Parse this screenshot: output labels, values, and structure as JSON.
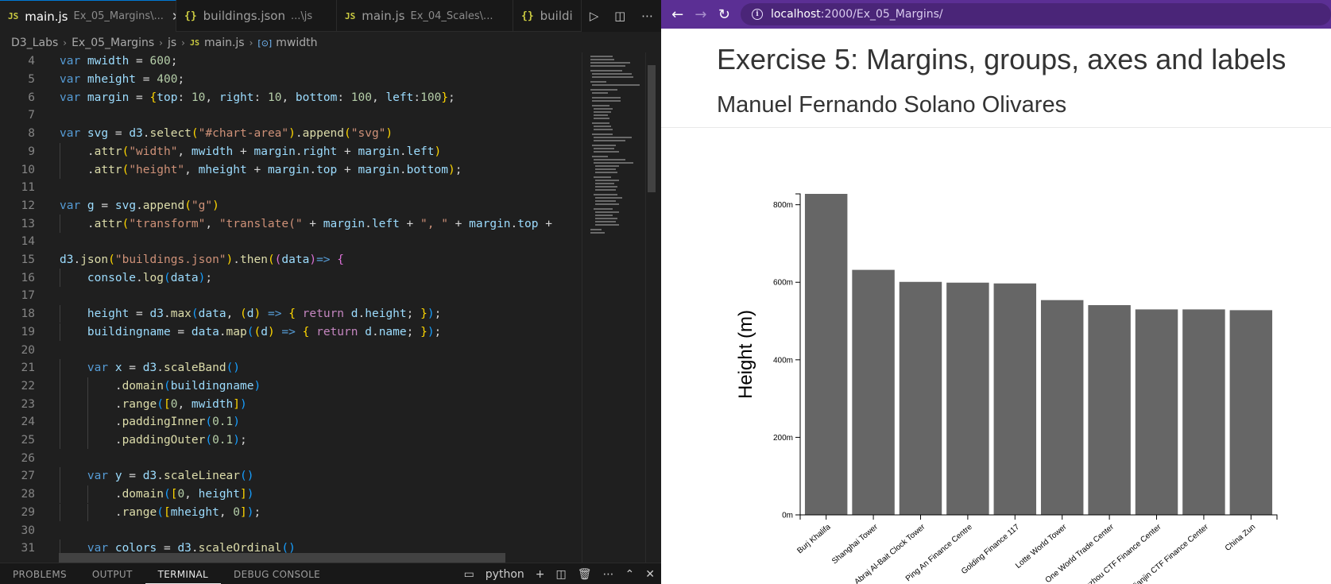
{
  "editor": {
    "tabs": [
      {
        "name": "main.js",
        "desc": "Ex_05_Margins\\...",
        "type": "js",
        "active": true
      },
      {
        "name": "buildings.json",
        "desc": "...\\js",
        "type": "json",
        "active": false
      },
      {
        "name": "main.js",
        "desc": "Ex_04_Scales\\...",
        "type": "js",
        "active": false
      },
      {
        "name": "buildi",
        "desc": "",
        "type": "json",
        "active": false
      }
    ],
    "breadcrumb": [
      "D3_Labs",
      "Ex_05_Margins",
      "js",
      "main.js",
      "mwidth"
    ],
    "code_lines": [
      {
        "n": "4",
        "indent": 0,
        "tokens": [
          [
            "kw",
            "var "
          ],
          [
            "vr hl",
            ""
          ],
          [
            "vr",
            "mwidth"
          ],
          [
            "",
            ""
          ],
          [
            "",
            " = "
          ],
          [
            "num",
            "600"
          ],
          [
            "",
            ";"
          ]
        ]
      },
      {
        "n": "5",
        "indent": 0,
        "tokens": [
          [
            "kw",
            "var "
          ],
          [
            "vr",
            "mheight"
          ],
          [
            "",
            " = "
          ],
          [
            "num",
            "400"
          ],
          [
            "",
            ";"
          ]
        ]
      },
      {
        "n": "6",
        "indent": 0,
        "tokens": [
          [
            "kw",
            "var "
          ],
          [
            "vr",
            "margin"
          ],
          [
            "",
            " = "
          ],
          [
            "br1",
            "{"
          ],
          [
            "vr",
            "top"
          ],
          [
            "",
            ": "
          ],
          [
            "num",
            "10"
          ],
          [
            "",
            ", "
          ],
          [
            "vr",
            "right"
          ],
          [
            "",
            ": "
          ],
          [
            "num",
            "10"
          ],
          [
            "",
            ", "
          ],
          [
            "vr",
            "bottom"
          ],
          [
            "",
            ": "
          ],
          [
            "num",
            "100"
          ],
          [
            "",
            ", "
          ],
          [
            "vr",
            "left"
          ],
          [
            "",
            ":"
          ],
          [
            "num",
            "100"
          ],
          [
            "br1",
            "}"
          ],
          [
            "",
            ";"
          ]
        ]
      },
      {
        "n": "7",
        "indent": 0,
        "tokens": []
      },
      {
        "n": "8",
        "indent": 0,
        "tokens": [
          [
            "kw",
            "var "
          ],
          [
            "vr",
            "svg"
          ],
          [
            "",
            " = "
          ],
          [
            "vr",
            "d3"
          ],
          [
            "",
            "."
          ],
          [
            "fn",
            "select"
          ],
          [
            "br1",
            "("
          ],
          [
            "str",
            "\"#chart-area\""
          ],
          [
            "br1",
            ")"
          ],
          [
            "",
            "."
          ],
          [
            "fn",
            "append"
          ],
          [
            "br1",
            "("
          ],
          [
            "str",
            "\"svg\""
          ],
          [
            "br1",
            ")"
          ]
        ]
      },
      {
        "n": "9",
        "indent": 1,
        "tokens": [
          [
            "",
            "."
          ],
          [
            "fn",
            "attr"
          ],
          [
            "br1",
            "("
          ],
          [
            "str",
            "\"width\""
          ],
          [
            "",
            ", "
          ],
          [
            "vr",
            "mwidth"
          ],
          [
            "",
            " + "
          ],
          [
            "vr",
            "margin"
          ],
          [
            "",
            "."
          ],
          [
            "vr",
            "right"
          ],
          [
            "",
            " + "
          ],
          [
            "vr",
            "margin"
          ],
          [
            "",
            "."
          ],
          [
            "vr",
            "left"
          ],
          [
            "br1",
            ")"
          ]
        ]
      },
      {
        "n": "10",
        "indent": 1,
        "tokens": [
          [
            "",
            "."
          ],
          [
            "fn",
            "attr"
          ],
          [
            "br1",
            "("
          ],
          [
            "str",
            "\"height\""
          ],
          [
            "",
            ", "
          ],
          [
            "vr",
            "mheight"
          ],
          [
            "",
            " + "
          ],
          [
            "vr",
            "margin"
          ],
          [
            "",
            "."
          ],
          [
            "vr",
            "top"
          ],
          [
            "",
            " + "
          ],
          [
            "vr",
            "margin"
          ],
          [
            "",
            "."
          ],
          [
            "vr",
            "bottom"
          ],
          [
            "br1",
            ")"
          ],
          [
            "",
            ";"
          ]
        ]
      },
      {
        "n": "11",
        "indent": 0,
        "tokens": []
      },
      {
        "n": "12",
        "indent": 0,
        "tokens": [
          [
            "kw",
            "var "
          ],
          [
            "vr",
            "g"
          ],
          [
            "",
            " = "
          ],
          [
            "vr",
            "svg"
          ],
          [
            "",
            "."
          ],
          [
            "fn",
            "append"
          ],
          [
            "br1",
            "("
          ],
          [
            "str",
            "\"g\""
          ],
          [
            "br1",
            ")"
          ]
        ]
      },
      {
        "n": "13",
        "indent": 1,
        "tokens": [
          [
            "",
            "."
          ],
          [
            "fn",
            "attr"
          ],
          [
            "br1",
            "("
          ],
          [
            "str",
            "\"transform\""
          ],
          [
            "",
            ", "
          ],
          [
            "str",
            "\"translate(\""
          ],
          [
            "",
            " + "
          ],
          [
            "vr",
            "margin"
          ],
          [
            "",
            "."
          ],
          [
            "vr",
            "left"
          ],
          [
            "",
            " + "
          ],
          [
            "str",
            "\", \""
          ],
          [
            "",
            " + "
          ],
          [
            "vr",
            "margin"
          ],
          [
            "",
            "."
          ],
          [
            "vr",
            "top"
          ],
          [
            "",
            " +"
          ]
        ]
      },
      {
        "n": "14",
        "indent": 0,
        "tokens": []
      },
      {
        "n": "15",
        "indent": 0,
        "tokens": [
          [
            "vr",
            "d3"
          ],
          [
            "",
            "."
          ],
          [
            "fn",
            "json"
          ],
          [
            "br1",
            "("
          ],
          [
            "str",
            "\"buildings.json\""
          ],
          [
            "br1",
            ")"
          ],
          [
            "",
            "."
          ],
          [
            "fn",
            "then"
          ],
          [
            "br1",
            "("
          ],
          [
            "br2",
            "("
          ],
          [
            "vr",
            "data"
          ],
          [
            "br2",
            ")"
          ],
          [
            "kw",
            "=>"
          ],
          [
            "",
            " "
          ],
          [
            "br2",
            "{"
          ]
        ]
      },
      {
        "n": "16",
        "indent": 1,
        "tokens": [
          [
            "vr",
            "console"
          ],
          [
            "",
            "."
          ],
          [
            "fn",
            "log"
          ],
          [
            "br3",
            "("
          ],
          [
            "vr",
            "data"
          ],
          [
            "br3",
            ")"
          ],
          [
            "",
            ";"
          ]
        ]
      },
      {
        "n": "17",
        "indent": 0,
        "tokens": []
      },
      {
        "n": "18",
        "indent": 1,
        "tokens": [
          [
            "vr",
            "height"
          ],
          [
            "",
            " = "
          ],
          [
            "vr",
            "d3"
          ],
          [
            "",
            "."
          ],
          [
            "fn",
            "max"
          ],
          [
            "br3",
            "("
          ],
          [
            "vr",
            "data"
          ],
          [
            "",
            ", "
          ],
          [
            "br1",
            "("
          ],
          [
            "vr",
            "d"
          ],
          [
            "br1",
            ")"
          ],
          [
            "",
            " "
          ],
          [
            "kw",
            "=>"
          ],
          [
            "",
            " "
          ],
          [
            "br1",
            "{"
          ],
          [
            "",
            " "
          ],
          [
            "kw2",
            "return"
          ],
          [
            "",
            " "
          ],
          [
            "vr",
            "d"
          ],
          [
            "",
            "."
          ],
          [
            "vr",
            "height"
          ],
          [
            "",
            "; "
          ],
          [
            "br1",
            "}"
          ],
          [
            "br3",
            ")"
          ],
          [
            "",
            ";"
          ]
        ]
      },
      {
        "n": "19",
        "indent": 1,
        "tokens": [
          [
            "vr",
            "buildingname"
          ],
          [
            "",
            " = "
          ],
          [
            "vr",
            "data"
          ],
          [
            "",
            "."
          ],
          [
            "fn",
            "map"
          ],
          [
            "br3",
            "("
          ],
          [
            "br1",
            "("
          ],
          [
            "vr",
            "d"
          ],
          [
            "br1",
            ")"
          ],
          [
            "",
            " "
          ],
          [
            "kw",
            "=>"
          ],
          [
            "",
            " "
          ],
          [
            "br1",
            "{"
          ],
          [
            "",
            " "
          ],
          [
            "kw2",
            "return"
          ],
          [
            "",
            " "
          ],
          [
            "vr",
            "d"
          ],
          [
            "",
            "."
          ],
          [
            "vr",
            "name"
          ],
          [
            "",
            "; "
          ],
          [
            "br1",
            "}"
          ],
          [
            "br3",
            ")"
          ],
          [
            "",
            ";"
          ]
        ]
      },
      {
        "n": "20",
        "indent": 0,
        "tokens": []
      },
      {
        "n": "21",
        "indent": 1,
        "tokens": [
          [
            "kw",
            "var "
          ],
          [
            "vr",
            "x"
          ],
          [
            "",
            " = "
          ],
          [
            "vr",
            "d3"
          ],
          [
            "",
            "."
          ],
          [
            "fn",
            "scaleBand"
          ],
          [
            "br3",
            "()"
          ]
        ]
      },
      {
        "n": "22",
        "indent": 2,
        "tokens": [
          [
            "",
            "."
          ],
          [
            "fn",
            "domain"
          ],
          [
            "br3",
            "("
          ],
          [
            "vr",
            "buildingname"
          ],
          [
            "br3",
            ")"
          ]
        ]
      },
      {
        "n": "23",
        "indent": 2,
        "tokens": [
          [
            "",
            "."
          ],
          [
            "fn",
            "range"
          ],
          [
            "br3",
            "("
          ],
          [
            "br1",
            "["
          ],
          [
            "num",
            "0"
          ],
          [
            "",
            ", "
          ],
          [
            "vr",
            "mwidth"
          ],
          [
            "br1",
            "]"
          ],
          [
            "br3",
            ")"
          ]
        ]
      },
      {
        "n": "24",
        "indent": 2,
        "tokens": [
          [
            "",
            "."
          ],
          [
            "fn",
            "paddingInner"
          ],
          [
            "br3",
            "("
          ],
          [
            "num",
            "0.1"
          ],
          [
            "br3",
            ")"
          ]
        ]
      },
      {
        "n": "25",
        "indent": 2,
        "tokens": [
          [
            "",
            "."
          ],
          [
            "fn",
            "paddingOuter"
          ],
          [
            "br3",
            "("
          ],
          [
            "num",
            "0.1"
          ],
          [
            "br3",
            ")"
          ],
          [
            "",
            ";"
          ]
        ]
      },
      {
        "n": "26",
        "indent": 0,
        "tokens": []
      },
      {
        "n": "27",
        "indent": 1,
        "tokens": [
          [
            "kw",
            "var "
          ],
          [
            "vr",
            "y"
          ],
          [
            "",
            " = "
          ],
          [
            "vr",
            "d3"
          ],
          [
            "",
            "."
          ],
          [
            "fn",
            "scaleLinear"
          ],
          [
            "br3",
            "()"
          ]
        ]
      },
      {
        "n": "28",
        "indent": 2,
        "tokens": [
          [
            "",
            "."
          ],
          [
            "fn",
            "domain"
          ],
          [
            "br3",
            "("
          ],
          [
            "br1",
            "["
          ],
          [
            "num",
            "0"
          ],
          [
            "",
            ", "
          ],
          [
            "vr",
            "height"
          ],
          [
            "br1",
            "]"
          ],
          [
            "br3",
            ")"
          ]
        ]
      },
      {
        "n": "29",
        "indent": 2,
        "tokens": [
          [
            "",
            "."
          ],
          [
            "fn",
            "range"
          ],
          [
            "br3",
            "("
          ],
          [
            "br1",
            "["
          ],
          [
            "vr",
            "mheight"
          ],
          [
            "",
            ", "
          ],
          [
            "num",
            "0"
          ],
          [
            "br1",
            "]"
          ],
          [
            "br3",
            ")"
          ],
          [
            "",
            ";"
          ]
        ]
      },
      {
        "n": "30",
        "indent": 0,
        "tokens": []
      },
      {
        "n": "31",
        "indent": 1,
        "tokens": [
          [
            "kw",
            "var "
          ],
          [
            "vr",
            "colors"
          ],
          [
            "",
            " = "
          ],
          [
            "vr",
            "d3"
          ],
          [
            "",
            "."
          ],
          [
            "fn",
            "scaleOrdinal"
          ],
          [
            "br3",
            "()"
          ]
        ]
      }
    ],
    "panel_tabs": [
      "PROBLEMS",
      "OUTPUT",
      "TERMINAL",
      "DEBUG CONSOLE"
    ],
    "active_panel_tab": "TERMINAL",
    "terminal_name": "python"
  },
  "browser": {
    "url_host": "localhost",
    "url_path": ":2000/Ex_05_Margins/",
    "page_title": "Exercise 5: Margins, groups, axes and labels",
    "page_subtitle": "Manuel Fernando Solano Olivares"
  },
  "chart_data": {
    "type": "bar",
    "categories": [
      "Burj Khalifa",
      "Shanghai Tower",
      "Abraj Al-Bait Clock Tower",
      "Ping An Finance Centre",
      "Golding Finance 117",
      "Lotte World Tower",
      "One World Trade Center",
      "Guangzhou CTF Finance Center",
      "Tianjin CTF Finance Center",
      "China Zun"
    ],
    "values": [
      828,
      632,
      601,
      599,
      597,
      554,
      541,
      530,
      530,
      528
    ],
    "ylabel": "Height (m)",
    "yticks": [
      0,
      200,
      400,
      600,
      800
    ],
    "ytick_suffix": "m",
    "ylim": [
      0,
      828
    ],
    "bar_color": "#666666"
  }
}
